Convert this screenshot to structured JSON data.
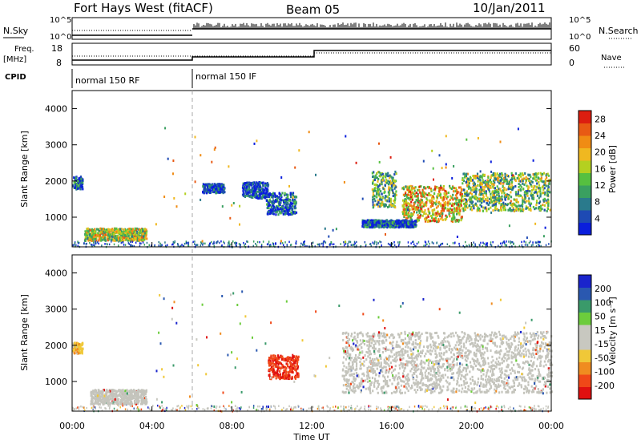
{
  "header": {
    "station": "Fort Hays West (fitACF)",
    "beam": "Beam 05",
    "date": "10/Jan/2011"
  },
  "top_panel": {
    "left_label": "N.Sky",
    "right_label": "N.Search",
    "left_ticks": [
      "10^5",
      "10^0"
    ],
    "right_ticks": [
      "10^5",
      "10^0"
    ]
  },
  "freq_panel": {
    "left_label": "Freq.",
    "left_unit": "[MHz]",
    "left_ticks": [
      "18",
      "8"
    ],
    "right_label": "Nave",
    "right_ticks": [
      "60",
      "0"
    ]
  },
  "cpid": {
    "label": "CPID",
    "segments": [
      "normal 150 RF",
      "normal 150 IF"
    ]
  },
  "colors": {
    "power_scale": [
      "#0a1edc",
      "#1e4ab4",
      "#2a7a8c",
      "#3aa060",
      "#56c040",
      "#b4d020",
      "#f0b820",
      "#f08c14",
      "#e85a14",
      "#dc1e10"
    ],
    "velocity_scale": [
      "#e01010",
      "#f04818",
      "#f08c20",
      "#f0c838",
      "#c8c8c0",
      "#c8c8c0",
      "#6ccc3c",
      "#3a9a6a",
      "#2a58b0",
      "#1a24cc"
    ],
    "gray_scatter": "#c4c4bc"
  },
  "chart_data": [
    {
      "type": "heatmap",
      "title": "",
      "xlabel": "",
      "ylabel": "Slant Range [km]",
      "xlim": [
        0,
        24
      ],
      "ylim": [
        180,
        4500
      ],
      "yticks": [
        "1000",
        "2000",
        "3000",
        "4000"
      ],
      "colorbar": {
        "label": "Power [dB]",
        "ticks": [
          "4",
          "8",
          "12",
          "16",
          "20",
          "24",
          "28"
        ],
        "range": [
          0,
          30
        ]
      },
      "regions": [
        {
          "t0": 0.0,
          "t1": 0.5,
          "r0": 1800,
          "r1": 2150,
          "level": 0.15
        },
        {
          "t0": 0.6,
          "t1": 3.7,
          "r0": 380,
          "r1": 720,
          "level": 0.55
        },
        {
          "t0": 6.5,
          "t1": 7.6,
          "r0": 1700,
          "r1": 1950,
          "level": 0.1
        },
        {
          "t0": 8.5,
          "t1": 9.8,
          "r0": 1550,
          "r1": 2000,
          "level": 0.1
        },
        {
          "t0": 9.7,
          "t1": 11.2,
          "r0": 1100,
          "r1": 1700,
          "level": 0.15
        },
        {
          "t0": 15.0,
          "t1": 16.2,
          "r0": 1300,
          "r1": 2300,
          "level": 0.4
        },
        {
          "t0": 16.5,
          "t1": 19.5,
          "r0": 900,
          "r1": 1900,
          "level": 0.65
        },
        {
          "t0": 19.5,
          "t1": 23.9,
          "r0": 1200,
          "r1": 2250,
          "level": 0.45
        },
        {
          "t0": 14.5,
          "t1": 17.2,
          "r0": 750,
          "r1": 950,
          "level": 0.15
        }
      ]
    },
    {
      "type": "heatmap",
      "title": "",
      "xlabel": "Time UT",
      "ylabel": "Slant Range [km]",
      "xlim": [
        0,
        24
      ],
      "ylim": [
        180,
        4500
      ],
      "yticks": [
        "1000",
        "2000",
        "3000",
        "4000"
      ],
      "xticks": [
        "00:00",
        "04:00",
        "08:00",
        "12:00",
        "16:00",
        "20:00",
        "00:00"
      ],
      "colorbar": {
        "label": "Velocity [m s⁻¹]",
        "ticks": [
          "200",
          "100",
          "50",
          "15",
          "-15",
          "-50",
          "-100",
          "-200"
        ],
        "range": [
          -250,
          250
        ]
      },
      "regions": [
        {
          "t0": 0.0,
          "t1": 0.5,
          "r0": 1800,
          "r1": 2100,
          "level": -0.3
        },
        {
          "t0": 0.9,
          "t1": 3.7,
          "r0": 400,
          "r1": 800,
          "level": 0.0
        },
        {
          "t0": 9.8,
          "t1": 11.3,
          "r0": 1100,
          "r1": 1750,
          "level": -0.75
        },
        {
          "t0": 13.5,
          "t1": 24.0,
          "r0": 700,
          "r1": 2400,
          "level": 0.0
        }
      ]
    }
  ]
}
